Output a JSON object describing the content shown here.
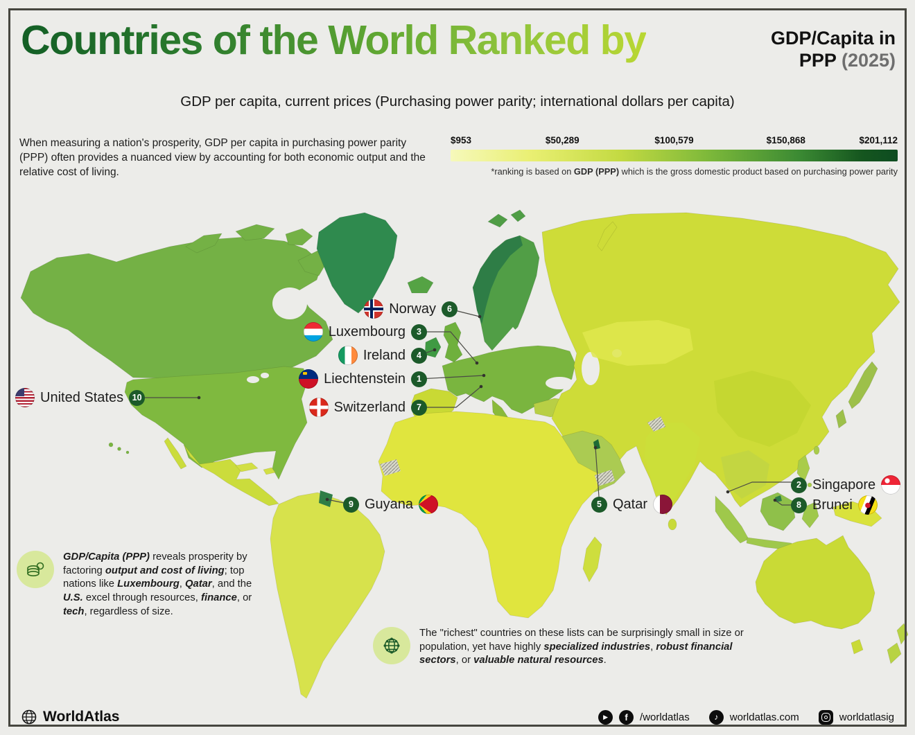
{
  "header": {
    "title": "Countries of the World Ranked by",
    "title_right_line1": "GDP/Capita in",
    "title_right_bold": "PPP",
    "title_right_year": "(2025)",
    "subtitle": "GDP per capita, current prices (Purchasing power parity; international dollars per capita)"
  },
  "intro": "When measuring a nation's prosperity, GDP per capita in purchasing power parity (PPP) often provides a nuanced view by accounting for both economic output and the relative cost of living.",
  "legend": {
    "ticks": [
      "$953",
      "$50,289",
      "$100,579",
      "$150,868",
      "$201,112"
    ],
    "note_html": "*ranking is based on <b>GDP (PPP)</b> which is the gross domestic product based on purchasing power parity"
  },
  "rankings": [
    {
      "rank": "1",
      "country": "Liechtenstein"
    },
    {
      "rank": "2",
      "country": "Singapore"
    },
    {
      "rank": "3",
      "country": "Luxembourg"
    },
    {
      "rank": "4",
      "country": "Ireland"
    },
    {
      "rank": "5",
      "country": "Qatar"
    },
    {
      "rank": "6",
      "country": "Norway"
    },
    {
      "rank": "7",
      "country": "Switzerland"
    },
    {
      "rank": "8",
      "country": "Brunei"
    },
    {
      "rank": "9",
      "country": "Guyana"
    },
    {
      "rank": "10",
      "country": "United States"
    }
  ],
  "notes": {
    "left_html": "<b><i>GDP/Capita (PPP)</i></b> reveals prosperity by factoring <b><i>output and cost of living</i></b>; top nations like <b><i>Luxembourg</i></b>, <b><i>Qatar</i></b>, and the <b><i>U.S.</i></b> excel through resources, <b><i>finance</i></b>, or <b><i>tech</i></b>, regardless of size.",
    "center_html": "The \"richest\" countries on these lists can be surprisingly small in size or population, yet have highly <b><i>specialized industries</i></b>, <b><i>robust financial sectors</i></b>, or <b><i>valuable natural resources</i></b>."
  },
  "footer": {
    "brand": "WorldAtlas",
    "icons": {
      "youtube_glyph": "▶",
      "facebook_glyph": "f",
      "tiktok_glyph": "♪"
    },
    "handle_fb": "/worldatlas",
    "handle_web": "worldatlas.com",
    "handle_ig": "worldatlasig"
  },
  "chart_data": {
    "type": "choropleth_map",
    "title": "Countries of the World Ranked by GDP/Capita in PPP (2025)",
    "metric": "GDP per capita, current prices (Purchasing power parity; international dollars per capita)",
    "scale_ticks_usd": [
      953,
      50289,
      100579,
      150868,
      201112
    ],
    "legend_note": "*ranking is based on GDP (PPP) which is the gross domestic product based on purchasing power parity",
    "top_10_ranked": [
      {
        "rank": 1,
        "country": "Liechtenstein"
      },
      {
        "rank": 2,
        "country": "Singapore"
      },
      {
        "rank": 3,
        "country": "Luxembourg"
      },
      {
        "rank": 4,
        "country": "Ireland"
      },
      {
        "rank": 5,
        "country": "Qatar"
      },
      {
        "rank": 6,
        "country": "Norway"
      },
      {
        "rank": 7,
        "country": "Switzerland"
      },
      {
        "rank": 8,
        "country": "Brunei"
      },
      {
        "rank": 9,
        "country": "Guyana"
      },
      {
        "rank": 10,
        "country": "United States"
      }
    ]
  },
  "colors": {
    "scale_low": "#f6f9bb",
    "scale_high": "#0d4c20",
    "rank_badge": "#1c5a2a",
    "title_gradient_start": "#135f26",
    "title_gradient_end": "#b9d733"
  }
}
